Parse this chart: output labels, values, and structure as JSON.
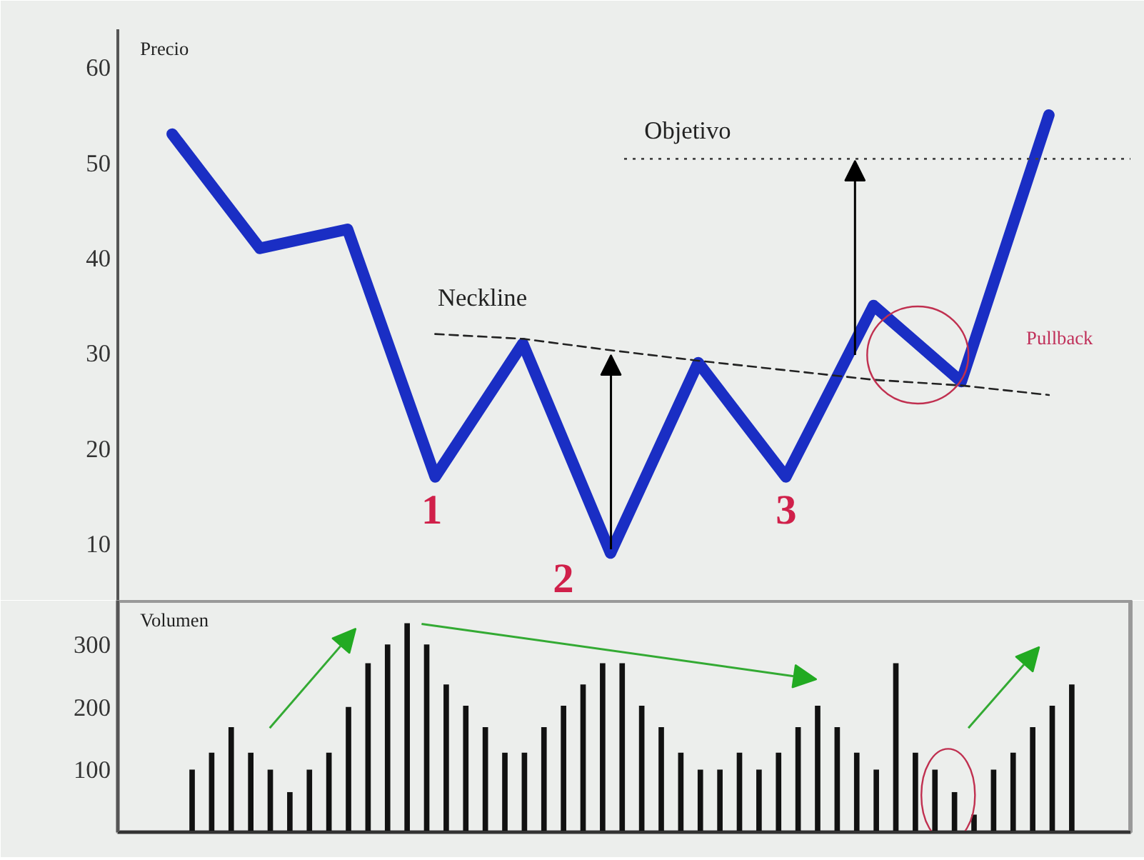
{
  "chart_data": [
    {
      "type": "line",
      "ylabel": "Precio",
      "ylim": [
        4,
        64
      ],
      "yticks": [
        10,
        20,
        30,
        40,
        50,
        60
      ],
      "tick_labels": "y",
      "grid": false,
      "categories": [
        null,
        null,
        null,
        null,
        null,
        null,
        null,
        null,
        null,
        null,
        null
      ],
      "series": [
        {
          "color": "#1a2ec4",
          "values": [
            53,
            41,
            43,
            17,
            31,
            9,
            29,
            17,
            35,
            27,
            55
          ],
          "line_style": "solid"
        },
        {
          "color": "#222222",
          "values": [
            null,
            null,
            null,
            32,
            31.5,
            30.3,
            29.2,
            28.2,
            27.2,
            26.6,
            25.6
          ],
          "line_style": "dashed"
        }
      ],
      "ref_lines": [
        {
          "axis": "y",
          "value": 50.4,
          "label": "Objetivo",
          "color": "#444444",
          "line_style": "dotted"
        }
      ],
      "annotations": [
        "1",
        "2",
        "3",
        "Neckline",
        "Pullback"
      ]
    },
    {
      "type": "bar",
      "ylabel": "Volumen",
      "ylim": [
        0,
        370
      ],
      "yticks": [
        100,
        200,
        300
      ],
      "tick_labels": "y",
      "grid": false,
      "categories": [
        null,
        null,
        null,
        null,
        null,
        null,
        null,
        null,
        null,
        null,
        null,
        null,
        null,
        null,
        null,
        null,
        null,
        null,
        null,
        null,
        null,
        null,
        null,
        null,
        null,
        null,
        null,
        null,
        null,
        null,
        null,
        null,
        null,
        null,
        null,
        null,
        null,
        null,
        null,
        null,
        null,
        null,
        null,
        null,
        null,
        null
      ],
      "series": [
        {
          "color": "#111111",
          "values": [
            100,
            127,
            168,
            127,
            100,
            64,
            100,
            127,
            200,
            270,
            300,
            334,
            300,
            236,
            202,
            168,
            127,
            127,
            168,
            202,
            236,
            270,
            270,
            202,
            168,
            127,
            100,
            100,
            127,
            100,
            127,
            168,
            202,
            168,
            127,
            100,
            270,
            127,
            100,
            64,
            28,
            100,
            127,
            168,
            202,
            236
          ]
        }
      ]
    }
  ]
}
